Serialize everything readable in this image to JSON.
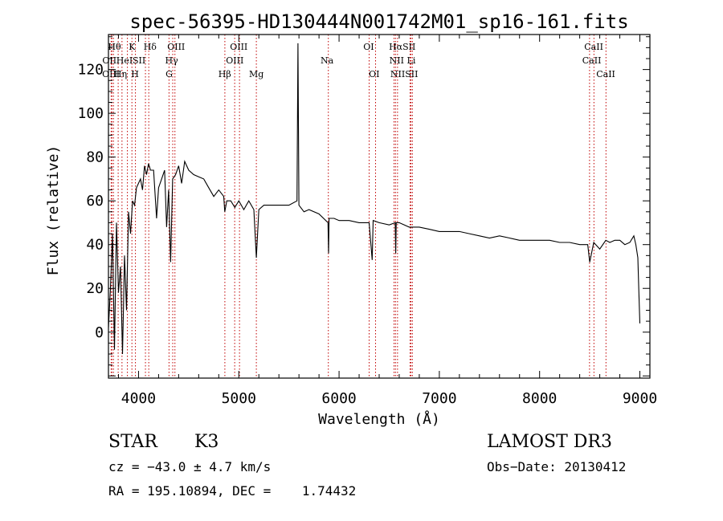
{
  "chart_data": {
    "type": "line",
    "title": "spec-56395-HD130444N001742M01_sp16-161.fits",
    "xlabel": "Wavelength (Å)",
    "ylabel": "Flux (relative)",
    "xlim": [
      3700,
      9100
    ],
    "ylim": [
      -21,
      136
    ],
    "xticks": [
      4000,
      5000,
      6000,
      7000,
      8000,
      9000
    ],
    "yticks": [
      0,
      20,
      40,
      60,
      80,
      100,
      120
    ],
    "series": [
      {
        "name": "flux",
        "x": [
          3700,
          3720,
          3740,
          3760,
          3780,
          3800,
          3820,
          3840,
          3860,
          3880,
          3900,
          3920,
          3940,
          3960,
          3980,
          4000,
          4020,
          4040,
          4060,
          4080,
          4100,
          4120,
          4150,
          4180,
          4200,
          4230,
          4260,
          4280,
          4300,
          4320,
          4340,
          4370,
          4400,
          4430,
          4460,
          4500,
          4550,
          4600,
          4650,
          4700,
          4750,
          4800,
          4850,
          4860,
          4880,
          4920,
          4960,
          5000,
          5050,
          5100,
          5150,
          5175,
          5200,
          5250,
          5300,
          5400,
          5500,
          5580,
          5590,
          5600,
          5650,
          5700,
          5800,
          5890,
          5895,
          5900,
          5950,
          6000,
          6100,
          6200,
          6300,
          6330,
          6340,
          6400,
          6500,
          6560,
          6565,
          6570,
          6600,
          6700,
          6800,
          6900,
          7000,
          7100,
          7200,
          7300,
          7400,
          7500,
          7600,
          7700,
          7800,
          7900,
          8000,
          8100,
          8200,
          8300,
          8400,
          8480,
          8500,
          8540,
          8600,
          8660,
          8700,
          8750,
          8800,
          8850,
          8900,
          8940,
          8960,
          8980,
          8990,
          9000
        ],
        "values": [
          2,
          20,
          45,
          -8,
          50,
          18,
          30,
          -10,
          35,
          10,
          55,
          45,
          60,
          58,
          66,
          68,
          70,
          65,
          76,
          72,
          77,
          74,
          74,
          52,
          66,
          70,
          74,
          48,
          65,
          32,
          70,
          72,
          76,
          68,
          78,
          74,
          72,
          71,
          70,
          66,
          62,
          65,
          62,
          55,
          60,
          60,
          57,
          60,
          56,
          60,
          56,
          34,
          56,
          58,
          58,
          58,
          58,
          60,
          132,
          58,
          55,
          56,
          54,
          50,
          36,
          52,
          52,
          51,
          51,
          50,
          50,
          33,
          51,
          50,
          49,
          50,
          36,
          50,
          50,
          48,
          48,
          47,
          46,
          46,
          46,
          45,
          44,
          43,
          44,
          43,
          42,
          42,
          42,
          42,
          41,
          41,
          40,
          40,
          32,
          41,
          38,
          42,
          41,
          42,
          42,
          40,
          41,
          44,
          40,
          34,
          18,
          4
        ]
      }
    ],
    "line_markers": [
      {
        "wavelength": 3734,
        "label": "Hθ"
      },
      {
        "wavelength": 3727,
        "label": "OII"
      },
      {
        "wavelength": 3750,
        "label": "OIII"
      },
      {
        "wavelength": 3797,
        "label": ""
      },
      {
        "wavelength": 3835,
        "label": "Hη"
      },
      {
        "wavelength": 3889,
        "label": "HeI"
      },
      {
        "wavelength": 3934,
        "label": "K"
      },
      {
        "wavelength": 3969,
        "label": "H"
      },
      {
        "wavelength": 4069,
        "label": "SII"
      },
      {
        "wavelength": 4102,
        "label": "Hδ"
      },
      {
        "wavelength": 4304,
        "label": "G"
      },
      {
        "wavelength": 4341,
        "label": "Hγ"
      },
      {
        "wavelength": 4363,
        "label": "OIII"
      },
      {
        "wavelength": 4861,
        "label": "Hβ"
      },
      {
        "wavelength": 4959,
        "label": "OIII"
      },
      {
        "wavelength": 5007,
        "label": "OIII"
      },
      {
        "wavelength": 5175,
        "label": "Mg"
      },
      {
        "wavelength": 5893,
        "label": "Na"
      },
      {
        "wavelength": 6300,
        "label": "OI"
      },
      {
        "wavelength": 6364,
        "label": "OI"
      },
      {
        "wavelength": 6548,
        "label": "NII"
      },
      {
        "wavelength": 6563,
        "label": "Hα"
      },
      {
        "wavelength": 6583,
        "label": "NII"
      },
      {
        "wavelength": 6708,
        "label": "Li"
      },
      {
        "wavelength": 6717,
        "label": "SII"
      },
      {
        "wavelength": 6731,
        "label": "SII"
      },
      {
        "wavelength": 8498,
        "label": "CaII"
      },
      {
        "wavelength": 8542,
        "label": "CaII"
      },
      {
        "wavelength": 8662,
        "label": "CaII"
      }
    ],
    "label_rows": [
      [
        {
          "text": "Hθ",
          "x": 3760
        },
        {
          "text": "K",
          "x": 3935
        },
        {
          "text": "Hδ",
          "x": 4115
        },
        {
          "text": "OIII",
          "x": 4375
        },
        {
          "text": "OIII",
          "x": 5000
        },
        {
          "text": "OI",
          "x": 6295
        },
        {
          "text": "HαSII",
          "x": 6630
        },
        {
          "text": "CaII",
          "x": 8540
        }
      ],
      [
        {
          "text": "OII",
          "x": 3710
        },
        {
          "text": "HeI",
          "x": 3860
        },
        {
          "text": "SII",
          "x": 4005
        },
        {
          "text": "Hγ",
          "x": 4330
        },
        {
          "text": "OIII",
          "x": 4960
        },
        {
          "text": "Na",
          "x": 5880
        },
        {
          "text": "NII",
          "x": 6575
        },
        {
          "text": "Li",
          "x": 6720
        },
        {
          "text": "CaII",
          "x": 8520
        }
      ],
      [
        {
          "text": "OIII",
          "x": 3725
        },
        {
          "text": "Hη",
          "x": 3820
        },
        {
          "text": "H",
          "x": 3965
        },
        {
          "text": "G",
          "x": 4305
        },
        {
          "text": "Hβ",
          "x": 4860
        },
        {
          "text": "Mg",
          "x": 5175
        },
        {
          "text": "OI",
          "x": 6350
        },
        {
          "text": "NIISII",
          "x": 6650
        },
        {
          "text": "CaII",
          "x": 8660
        }
      ]
    ]
  },
  "info": {
    "object_class": "STAR",
    "subclass": "K3",
    "survey": "LAMOST DR3",
    "cz": "cz = −43.0 ± 4.7 km/s",
    "obs_date": "Obs−Date: 20130412",
    "coords": "RA = 195.10894, DEC =    1.74432"
  }
}
